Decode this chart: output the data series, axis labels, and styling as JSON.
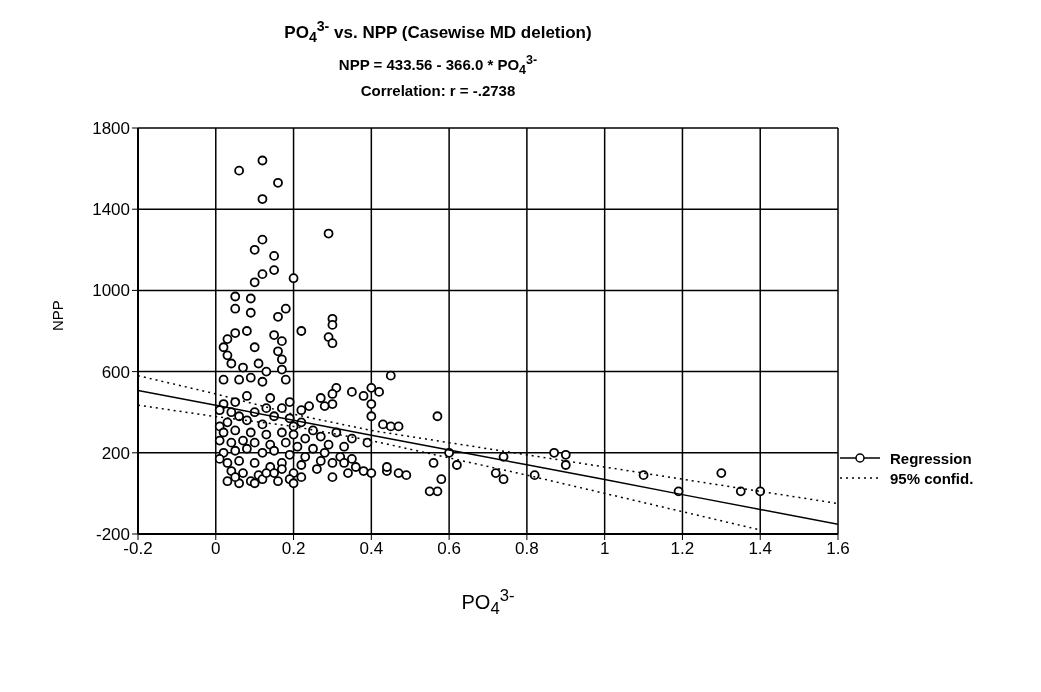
{
  "chart_data": {
    "type": "scatter",
    "title": "PO$_{4}$$^{3-}$ vs. NPP (Casewise MD deletion)",
    "subtitle": "NPP = 433.56 - 366.0 * PO$_{4}$$^{3-}$",
    "annotations": [
      "Correlation: r = -.2738"
    ],
    "xlabel": "PO$_{4}$$^{3-}$",
    "ylabel": "NPP",
    "xlim": [
      -0.2,
      1.6
    ],
    "xticks": [
      -0.2,
      0,
      0.2,
      0.4,
      0.6,
      0.8,
      1,
      1.2,
      1.4,
      1.6
    ],
    "ylim": [
      -200,
      1800
    ],
    "yticks": [
      -200,
      200,
      600,
      1000,
      1400,
      1800
    ],
    "grid": true,
    "legend": "right",
    "series": [
      {
        "marker": "circle",
        "color": "#000000",
        "x": [
          0.06,
          0.12,
          0.16,
          0.12,
          0.12,
          0.1,
          0.15,
          0.15,
          0.12,
          0.2,
          0.29,
          0.1,
          0.05,
          0.09,
          0.05,
          0.09,
          0.18,
          0.16,
          0.22,
          0.3,
          0.3,
          0.29,
          0.3,
          0.05,
          0.03,
          0.08,
          0.15,
          0.17,
          0.02,
          0.1,
          0.16,
          0.17,
          0.03,
          0.04,
          0.07,
          0.11,
          0.17,
          0.13,
          0.02,
          0.06,
          0.09,
          0.12,
          0.18,
          0.45,
          0.4,
          0.42,
          0.31,
          0.3,
          0.35,
          0.38,
          0.4,
          0.3,
          0.27,
          0.24,
          0.28,
          0.22,
          0.08,
          0.14,
          0.05,
          0.02,
          0.01,
          0.04,
          0.1,
          0.13,
          0.17,
          0.19,
          0.43,
          0.45,
          0.47,
          0.4,
          0.39,
          0.35,
          0.33,
          0.31,
          0.25,
          0.22,
          0.2,
          0.19,
          0.15,
          0.12,
          0.08,
          0.06,
          0.03,
          0.01,
          0.02,
          0.05,
          0.09,
          0.13,
          0.17,
          0.2,
          0.23,
          0.27,
          0.29,
          0.01,
          0.04,
          0.07,
          0.1,
          0.14,
          0.18,
          0.21,
          0.25,
          0.28,
          0.32,
          0.35,
          0.02,
          0.05,
          0.08,
          0.12,
          0.15,
          0.19,
          0.23,
          0.27,
          0.3,
          0.33,
          0.36,
          0.38,
          0.4,
          0.44,
          0.47,
          0.49,
          0.44,
          0.34,
          0.3,
          0.26,
          0.22,
          0.2,
          0.17,
          0.14,
          0.1,
          0.06,
          0.03,
          0.01,
          0.04,
          0.07,
          0.11,
          0.15,
          0.19,
          0.22,
          0.2,
          0.16,
          0.12,
          0.09,
          0.06,
          0.03,
          0.05,
          0.1,
          0.13,
          0.17,
          0.56,
          0.57,
          0.58,
          0.55,
          0.57,
          0.6,
          0.62,
          0.72,
          0.74,
          0.74,
          0.82,
          0.87,
          0.9,
          0.9,
          1.1,
          1.19,
          1.3,
          1.35,
          1.4
        ],
        "values": [
          1590,
          1640,
          1530,
          1450,
          1250,
          1200,
          1170,
          1100,
          1080,
          1060,
          1280,
          1040,
          970,
          960,
          910,
          890,
          910,
          870,
          800,
          860,
          830,
          770,
          740,
          790,
          760,
          800,
          780,
          750,
          720,
          720,
          700,
          660,
          680,
          640,
          620,
          640,
          610,
          600,
          560,
          560,
          570,
          550,
          560,
          580,
          520,
          500,
          520,
          490,
          500,
          480,
          440,
          440,
          470,
          430,
          430,
          410,
          480,
          470,
          450,
          440,
          410,
          400,
          400,
          420,
          420,
          450,
          340,
          330,
          330,
          380,
          250,
          270,
          230,
          300,
          310,
          350,
          330,
          370,
          380,
          340,
          360,
          380,
          350,
          330,
          300,
          310,
          300,
          290,
          300,
          290,
          270,
          280,
          240,
          260,
          250,
          260,
          250,
          240,
          250,
          230,
          220,
          200,
          180,
          170,
          200,
          210,
          220,
          200,
          210,
          190,
          180,
          160,
          150,
          150,
          130,
          110,
          100,
          110,
          100,
          90,
          130,
          100,
          80,
          120,
          140,
          100,
          150,
          130,
          150,
          160,
          150,
          170,
          110,
          100,
          90,
          100,
          70,
          80,
          50,
          60,
          70,
          60,
          50,
          60,
          80,
          50,
          100,
          120,
          150,
          10,
          70,
          10,
          380,
          200,
          140,
          100,
          70,
          180,
          90,
          200,
          190,
          140,
          90,
          10,
          100,
          10,
          10
        ]
      },
      {
        "type": "line",
        "name": "Regression",
        "color": "#000000",
        "line_style": "solid",
        "marker": "none",
        "x": [
          -0.2,
          0,
          0.2,
          0.4,
          0.6,
          0.8,
          1,
          1.2,
          1.4,
          1.6
        ],
        "values": [
          507,
          434,
          360,
          287,
          214,
          141,
          68,
          -6,
          -79,
          -152
        ]
      },
      {
        "type": "line",
        "name": "95% confid.",
        "color": "#000000",
        "line_style": "dotted",
        "marker": "none",
        "x": [
          -0.2,
          0,
          0.2,
          0.4,
          0.6,
          0.8,
          1,
          1.2,
          1.4,
          1.6
        ],
        "values": [
          580,
          490,
          390,
          310,
          250,
          190,
          130,
          70,
          10,
          -50
        ]
      },
      {
        "type": "line",
        "color": "#000000",
        "line_style": "dotted",
        "marker": "none",
        "x": [
          -0.2,
          0,
          0.2,
          0.4,
          0.6,
          0.8,
          1,
          1.2,
          1.4
        ],
        "values": [
          435,
          378,
          330,
          260,
          175,
          90,
          0,
          -90,
          -180
        ]
      }
    ]
  }
}
